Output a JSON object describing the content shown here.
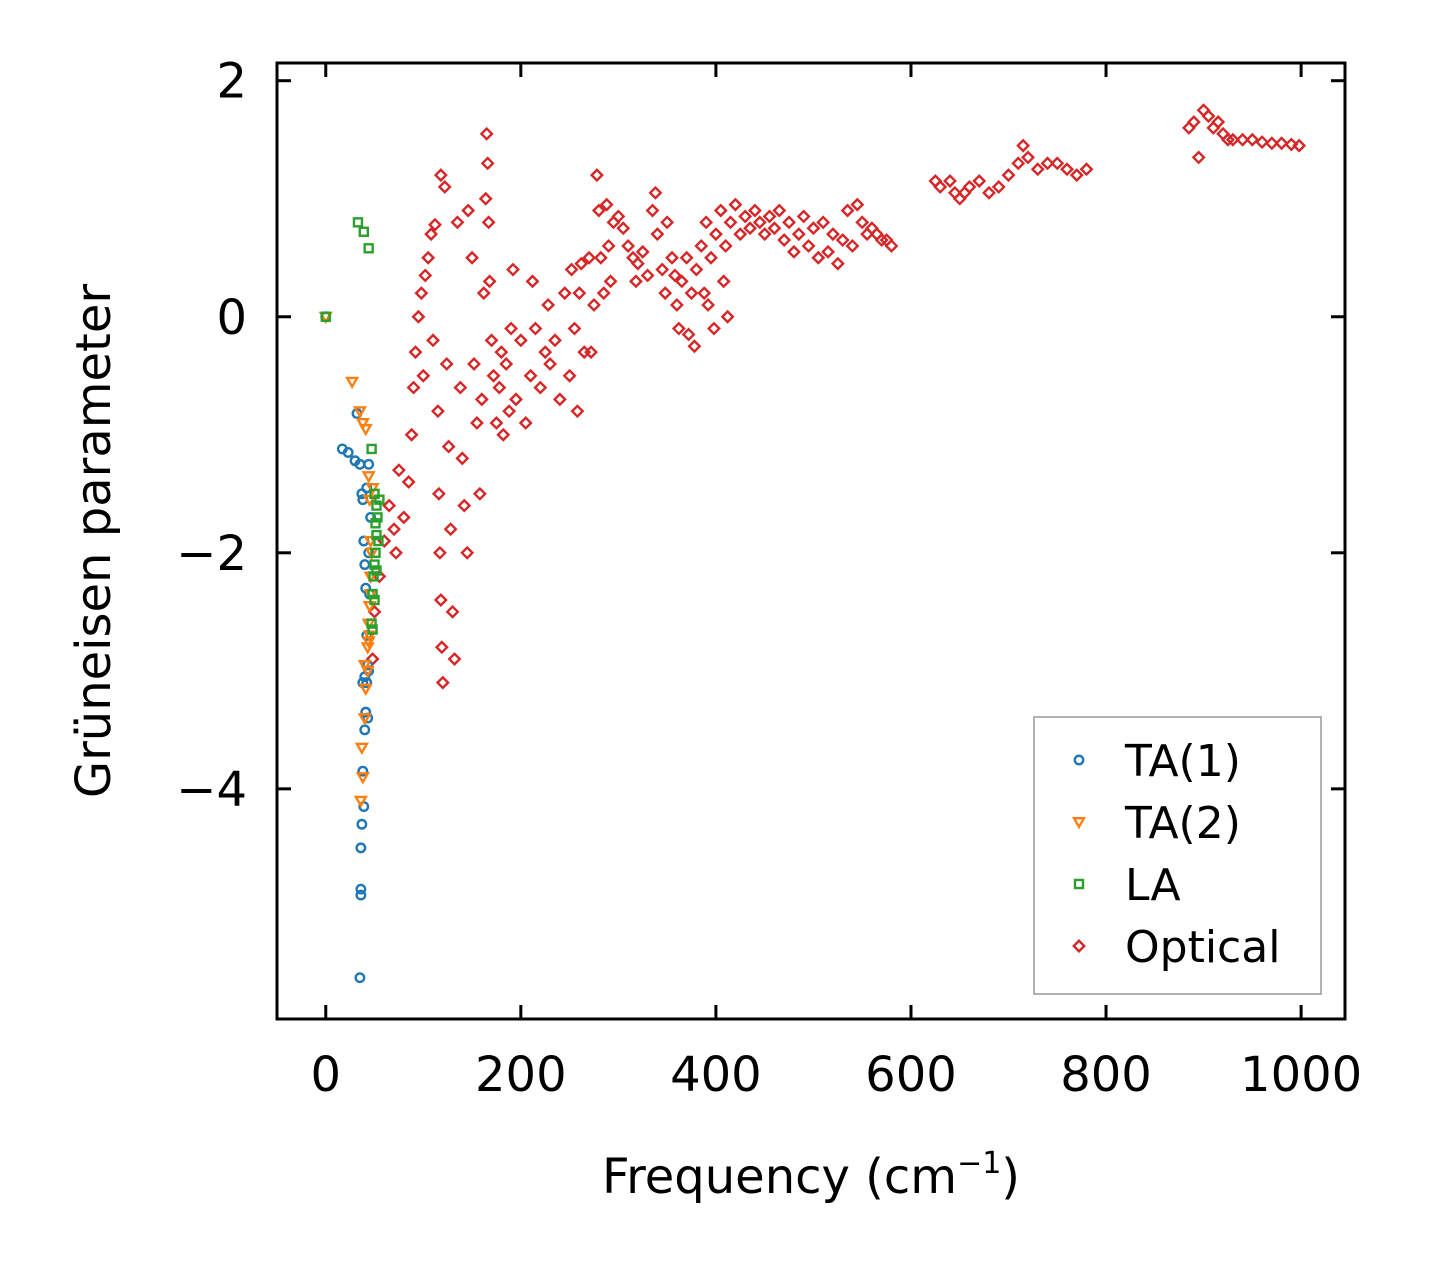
{
  "chart_data": {
    "type": "scatter",
    "title": "",
    "xlabel": "Frequency (cm",
    "xlabel_sup": "−1",
    "xlabel_close": ")",
    "ylabel": "Grüneisen parameter",
    "xlim": [
      -50,
      1045
    ],
    "ylim": [
      -5.95,
      2.15
    ],
    "xticks": [
      0,
      200,
      400,
      600,
      800,
      1000
    ],
    "xtick_labels": [
      "0",
      "200",
      "400",
      "600",
      "800",
      "1000"
    ],
    "yticks": [
      2,
      0,
      -2,
      -4
    ],
    "ytick_labels": [
      "2",
      "0",
      "−2",
      "−4"
    ],
    "grid": false,
    "legend_position": "bottom-right",
    "series": [
      {
        "name": "TA(1)",
        "marker": "circle",
        "color": "#1f77b4",
        "points": [
          [
            0,
            0
          ],
          [
            17,
            -1.12
          ],
          [
            23,
            -1.15
          ],
          [
            30,
            -1.22
          ],
          [
            32,
            -0.82
          ],
          [
            35,
            -1.25
          ],
          [
            37,
            -1.5
          ],
          [
            38,
            -1.55
          ],
          [
            39,
            -1.9
          ],
          [
            40,
            -2.1
          ],
          [
            41,
            -2.3
          ],
          [
            42,
            -2.7
          ],
          [
            43,
            -2.95
          ],
          [
            40,
            -3.05
          ],
          [
            42,
            -3.1
          ],
          [
            41,
            -3.35
          ],
          [
            40,
            -3.5
          ],
          [
            38,
            -3.85
          ],
          [
            39,
            -4.15
          ],
          [
            37,
            -4.3
          ],
          [
            36,
            -4.5
          ],
          [
            36,
            -4.85
          ],
          [
            36,
            -4.9
          ],
          [
            35,
            -5.6
          ],
          [
            44,
            -1.25
          ],
          [
            44,
            -2.0
          ],
          [
            45,
            -2.35
          ],
          [
            44,
            -3.0
          ],
          [
            43,
            -3.4
          ],
          [
            38,
            -3.1
          ],
          [
            42,
            -1.45
          ],
          [
            46,
            -1.7
          ]
        ]
      },
      {
        "name": "TA(2)",
        "marker": "triangle-down",
        "color": "#ff7f0e",
        "points": [
          [
            0,
            0
          ],
          [
            27,
            -0.55
          ],
          [
            35,
            -0.8
          ],
          [
            38,
            -0.9
          ],
          [
            41,
            -0.95
          ],
          [
            44,
            -1.35
          ],
          [
            45,
            -1.55
          ],
          [
            46,
            -1.9
          ],
          [
            46,
            -2.2
          ],
          [
            45,
            -2.45
          ],
          [
            44,
            -2.6
          ],
          [
            45,
            -2.7
          ],
          [
            44,
            -2.75
          ],
          [
            43,
            -2.8
          ],
          [
            40,
            -2.95
          ],
          [
            41,
            -3.15
          ],
          [
            40,
            -3.4
          ],
          [
            37,
            -3.65
          ],
          [
            38,
            -3.9
          ],
          [
            36,
            -4.1
          ],
          [
            48,
            -1.45
          ],
          [
            47,
            -2.0
          ],
          [
            46,
            -2.35
          ],
          [
            43,
            -3.0
          ]
        ]
      },
      {
        "name": "LA",
        "marker": "square",
        "color": "#2ca02c",
        "points": [
          [
            0,
            0
          ],
          [
            33,
            0.8
          ],
          [
            39,
            0.72
          ],
          [
            44,
            0.58
          ],
          [
            47,
            -1.12
          ],
          [
            50,
            -1.5
          ],
          [
            52,
            -1.6
          ],
          [
            53,
            -1.7
          ],
          [
            52,
            -1.85
          ],
          [
            51,
            -2.0
          ],
          [
            50,
            -2.1
          ],
          [
            49,
            -2.2
          ],
          [
            48,
            -2.35
          ],
          [
            47,
            -2.6
          ],
          [
            54,
            -1.9
          ],
          [
            52,
            -2.15
          ],
          [
            55,
            -1.55
          ],
          [
            51,
            -1.75
          ],
          [
            50,
            -2.4
          ],
          [
            48,
            -2.65
          ]
        ]
      },
      {
        "name": "Optical",
        "marker": "diamond",
        "color": "#d62728",
        "points": [
          [
            48,
            -2.9
          ],
          [
            50,
            -2.5
          ],
          [
            55,
            -2.2
          ],
          [
            60,
            -1.9
          ],
          [
            65,
            -1.6
          ],
          [
            70,
            -1.8
          ],
          [
            72,
            -2.0
          ],
          [
            75,
            -1.3
          ],
          [
            80,
            -1.7
          ],
          [
            85,
            -1.4
          ],
          [
            88,
            -1.0
          ],
          [
            90,
            -0.6
          ],
          [
            92,
            -0.3
          ],
          [
            95,
            0.0
          ],
          [
            98,
            0.2
          ],
          [
            100,
            -0.5
          ],
          [
            102,
            0.35
          ],
          [
            105,
            0.5
          ],
          [
            108,
            0.7
          ],
          [
            110,
            -0.2
          ],
          [
            112,
            0.78
          ],
          [
            115,
            -0.8
          ],
          [
            116,
            -1.5
          ],
          [
            117,
            -2.0
          ],
          [
            118,
            -2.4
          ],
          [
            119,
            -2.8
          ],
          [
            120,
            -3.1
          ],
          [
            118,
            1.2
          ],
          [
            122,
            1.1
          ],
          [
            124,
            -0.4
          ],
          [
            126,
            -1.1
          ],
          [
            128,
            -1.8
          ],
          [
            130,
            -2.5
          ],
          [
            132,
            -2.9
          ],
          [
            135,
            0.8
          ],
          [
            138,
            -0.6
          ],
          [
            140,
            -1.2
          ],
          [
            142,
            -1.6
          ],
          [
            145,
            -2.0
          ],
          [
            146,
            0.9
          ],
          [
            150,
            0.5
          ],
          [
            152,
            -0.4
          ],
          [
            155,
            -0.9
          ],
          [
            158,
            -1.5
          ],
          [
            160,
            -0.7
          ],
          [
            162,
            0.2
          ],
          [
            164,
            1.0
          ],
          [
            165,
            1.55
          ],
          [
            166,
            1.3
          ],
          [
            167,
            0.8
          ],
          [
            168,
            0.3
          ],
          [
            170,
            -0.2
          ],
          [
            172,
            -0.5
          ],
          [
            175,
            -0.9
          ],
          [
            178,
            -0.6
          ],
          [
            180,
            -0.3
          ],
          [
            182,
            -1.0
          ],
          [
            185,
            -0.4
          ],
          [
            188,
            -0.8
          ],
          [
            190,
            -0.1
          ],
          [
            192,
            0.4
          ],
          [
            195,
            -0.7
          ],
          [
            200,
            -0.2
          ],
          [
            205,
            -0.9
          ],
          [
            210,
            -0.5
          ],
          [
            212,
            0.3
          ],
          [
            215,
            -0.1
          ],
          [
            220,
            -0.6
          ],
          [
            225,
            -0.3
          ],
          [
            228,
            0.1
          ],
          [
            230,
            -0.4
          ],
          [
            235,
            -0.2
          ],
          [
            240,
            -0.7
          ],
          [
            245,
            0.2
          ],
          [
            250,
            -0.5
          ],
          [
            252,
            0.4
          ],
          [
            255,
            -0.1
          ],
          [
            258,
            -0.8
          ],
          [
            260,
            0.2
          ],
          [
            262,
            0.45
          ],
          [
            265,
            -0.3
          ],
          [
            270,
            0.5
          ],
          [
            272,
            -0.3
          ],
          [
            275,
            0.1
          ],
          [
            278,
            1.2
          ],
          [
            280,
            0.9
          ],
          [
            282,
            0.5
          ],
          [
            285,
            0.2
          ],
          [
            288,
            0.95
          ],
          [
            290,
            0.6
          ],
          [
            292,
            0.3
          ],
          [
            295,
            0.8
          ],
          [
            300,
            0.85
          ],
          [
            305,
            0.75
          ],
          [
            310,
            0.6
          ],
          [
            315,
            0.5
          ],
          [
            318,
            0.3
          ],
          [
            320,
            0.45
          ],
          [
            325,
            0.55
          ],
          [
            330,
            0.35
          ],
          [
            335,
            0.9
          ],
          [
            338,
            1.05
          ],
          [
            340,
            0.7
          ],
          [
            345,
            0.4
          ],
          [
            348,
            0.2
          ],
          [
            350,
            0.8
          ],
          [
            355,
            0.5
          ],
          [
            358,
            0.35
          ],
          [
            360,
            0.1
          ],
          [
            362,
            -0.1
          ],
          [
            365,
            0.3
          ],
          [
            370,
            0.5
          ],
          [
            372,
            -0.15
          ],
          [
            375,
            0.2
          ],
          [
            378,
            -0.25
          ],
          [
            380,
            0.4
          ],
          [
            385,
            0.6
          ],
          [
            388,
            0.2
          ],
          [
            390,
            0.8
          ],
          [
            392,
            0.1
          ],
          [
            395,
            0.5
          ],
          [
            398,
            -0.1
          ],
          [
            400,
            0.7
          ],
          [
            405,
            0.9
          ],
          [
            408,
            0.3
          ],
          [
            410,
            0.6
          ],
          [
            412,
            0.0
          ],
          [
            415,
            0.8
          ],
          [
            420,
            0.95
          ],
          [
            425,
            0.7
          ],
          [
            430,
            0.85
          ],
          [
            435,
            0.75
          ],
          [
            440,
            0.9
          ],
          [
            445,
            0.8
          ],
          [
            450,
            0.7
          ],
          [
            455,
            0.85
          ],
          [
            460,
            0.75
          ],
          [
            465,
            0.9
          ],
          [
            470,
            0.65
          ],
          [
            475,
            0.8
          ],
          [
            480,
            0.55
          ],
          [
            485,
            0.7
          ],
          [
            490,
            0.85
          ],
          [
            495,
            0.6
          ],
          [
            500,
            0.75
          ],
          [
            505,
            0.5
          ],
          [
            510,
            0.8
          ],
          [
            515,
            0.55
          ],
          [
            520,
            0.7
          ],
          [
            525,
            0.45
          ],
          [
            530,
            0.65
          ],
          [
            535,
            0.9
          ],
          [
            540,
            0.6
          ],
          [
            545,
            0.95
          ],
          [
            550,
            0.8
          ],
          [
            555,
            0.7
          ],
          [
            560,
            0.75
          ],
          [
            565,
            0.7
          ],
          [
            570,
            0.65
          ],
          [
            575,
            0.65
          ],
          [
            580,
            0.6
          ],
          [
            625,
            1.15
          ],
          [
            630,
            1.1
          ],
          [
            640,
            1.15
          ],
          [
            645,
            1.05
          ],
          [
            650,
            1.0
          ],
          [
            655,
            1.05
          ],
          [
            660,
            1.1
          ],
          [
            670,
            1.15
          ],
          [
            680,
            1.05
          ],
          [
            690,
            1.1
          ],
          [
            700,
            1.2
          ],
          [
            710,
            1.3
          ],
          [
            715,
            1.45
          ],
          [
            720,
            1.35
          ],
          [
            730,
            1.25
          ],
          [
            740,
            1.3
          ],
          [
            750,
            1.3
          ],
          [
            760,
            1.25
          ],
          [
            770,
            1.2
          ],
          [
            780,
            1.25
          ],
          [
            885,
            1.6
          ],
          [
            890,
            1.65
          ],
          [
            895,
            1.35
          ],
          [
            900,
            1.75
          ],
          [
            905,
            1.7
          ],
          [
            910,
            1.6
          ],
          [
            915,
            1.65
          ],
          [
            920,
            1.55
          ],
          [
            925,
            1.5
          ],
          [
            930,
            1.5
          ],
          [
            940,
            1.5
          ],
          [
            950,
            1.5
          ],
          [
            960,
            1.48
          ],
          [
            970,
            1.47
          ],
          [
            980,
            1.47
          ],
          [
            990,
            1.46
          ],
          [
            998,
            1.45
          ]
        ]
      }
    ]
  }
}
